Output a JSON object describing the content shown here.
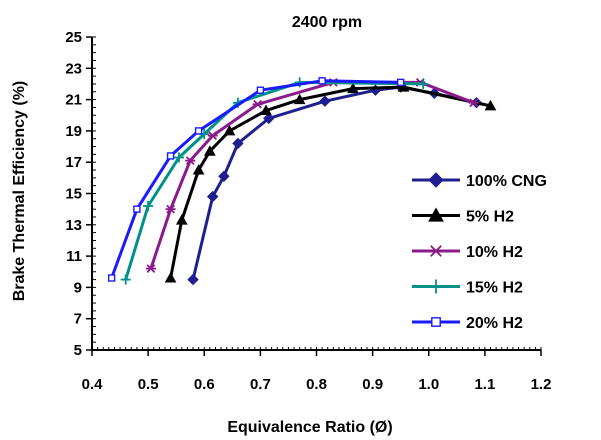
{
  "chart_data": {
    "type": "line",
    "title": "2400 rpm",
    "xlabel": "Equivalence Ratio  (Ø)",
    "ylabel": "Brake Thermal Efficiency (%)",
    "xlim": [
      0.4,
      1.2
    ],
    "ylim": [
      5,
      25
    ],
    "xticks": [
      "0.4",
      "0.5",
      "0.6",
      "0.7",
      "0.8",
      "0.9",
      "1.0",
      "1.1",
      "1.2"
    ],
    "yticks": [
      "5",
      "7",
      "9",
      "11",
      "13",
      "15",
      "17",
      "19",
      "21",
      "23",
      "25"
    ],
    "grid": false,
    "legend_position": "right",
    "series": [
      {
        "name": "100% CNG",
        "color": "#1f1f8f",
        "marker": "diamond",
        "x": [
          0.58,
          0.615,
          0.635,
          0.66,
          0.715,
          0.815,
          0.905,
          0.95,
          1.01,
          1.085
        ],
        "y": [
          9.5,
          14.8,
          16.1,
          18.2,
          19.8,
          20.9,
          21.6,
          21.8,
          21.4,
          20.8
        ]
      },
      {
        "name": "5% H2",
        "color": "#000000",
        "marker": "triangle",
        "x": [
          0.54,
          0.56,
          0.59,
          0.61,
          0.645,
          0.71,
          0.77,
          0.865,
          0.955,
          1.11
        ],
        "y": [
          9.6,
          13.3,
          16.5,
          17.7,
          19.0,
          20.3,
          21.0,
          21.7,
          21.8,
          20.6
        ]
      },
      {
        "name": "10% H2",
        "color": "#8b1a8b",
        "marker": "asterisk",
        "x": [
          0.505,
          0.54,
          0.575,
          0.615,
          0.695,
          0.83,
          0.985,
          1.08
        ],
        "y": [
          10.2,
          14.0,
          17.1,
          18.7,
          20.7,
          22.1,
          22.1,
          20.8
        ]
      },
      {
        "name": "15% H2",
        "color": "#00908a",
        "marker": "plus",
        "x": [
          0.46,
          0.5,
          0.555,
          0.6,
          0.66,
          0.77,
          0.99
        ],
        "y": [
          9.5,
          14.2,
          17.3,
          18.8,
          20.8,
          22.1,
          22.0
        ]
      },
      {
        "name": "20% H2",
        "color": "#1a1aff",
        "marker": "square",
        "x": [
          0.435,
          0.48,
          0.54,
          0.59,
          0.7,
          0.81,
          0.95
        ],
        "y": [
          9.6,
          14.0,
          17.4,
          19.0,
          21.6,
          22.2,
          22.1
        ]
      }
    ]
  }
}
